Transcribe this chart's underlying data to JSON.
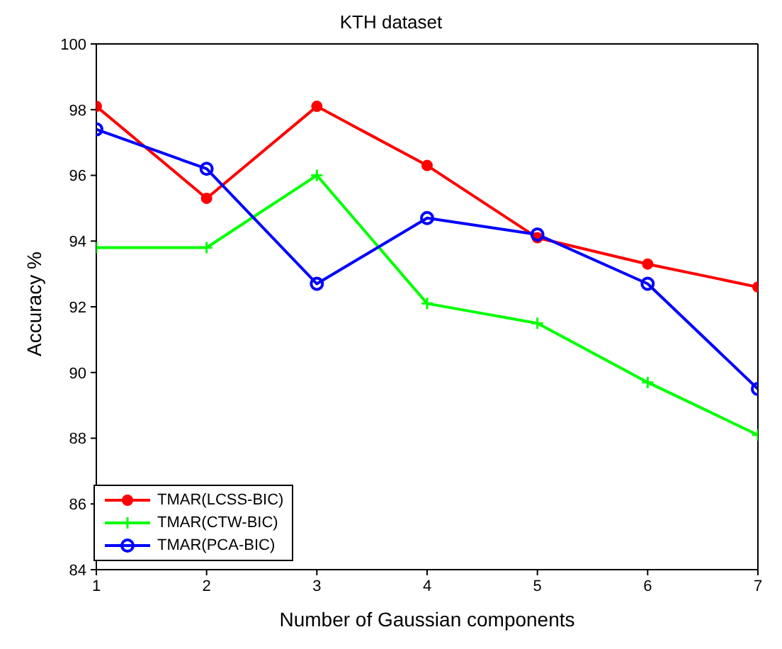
{
  "chart_data": {
    "type": "line",
    "title": "KTH dataset",
    "xlabel": "Number of Gaussian components",
    "ylabel": "Accuracy %",
    "x": [
      1,
      2,
      3,
      4,
      5,
      6,
      7
    ],
    "series": [
      {
        "name": "TMAR(LCSS-BIC)",
        "color": "#ff0000",
        "marker": "circle",
        "values": [
          98.1,
          95.3,
          98.1,
          96.3,
          94.1,
          93.3,
          92.6
        ]
      },
      {
        "name": "TMAR(CTW-BIC)",
        "color": "#00ff00",
        "marker": "cross",
        "values": [
          93.8,
          93.8,
          96.0,
          92.1,
          91.5,
          89.7,
          88.1
        ]
      },
      {
        "name": "TMAR(PCA-BIC)",
        "color": "#0000ff",
        "marker": "open circle",
        "values": [
          97.4,
          96.2,
          92.7,
          94.7,
          94.2,
          92.7,
          89.5
        ]
      }
    ],
    "xlim": [
      1,
      7
    ],
    "xticks": [
      1,
      2,
      3,
      4,
      5,
      6,
      7
    ],
    "ylim": [
      84,
      100
    ],
    "yticks": [
      84,
      86,
      88,
      90,
      92,
      94,
      96,
      98,
      100
    ],
    "grid": false,
    "legend": "bottom left",
    "line_style": "solid"
  }
}
